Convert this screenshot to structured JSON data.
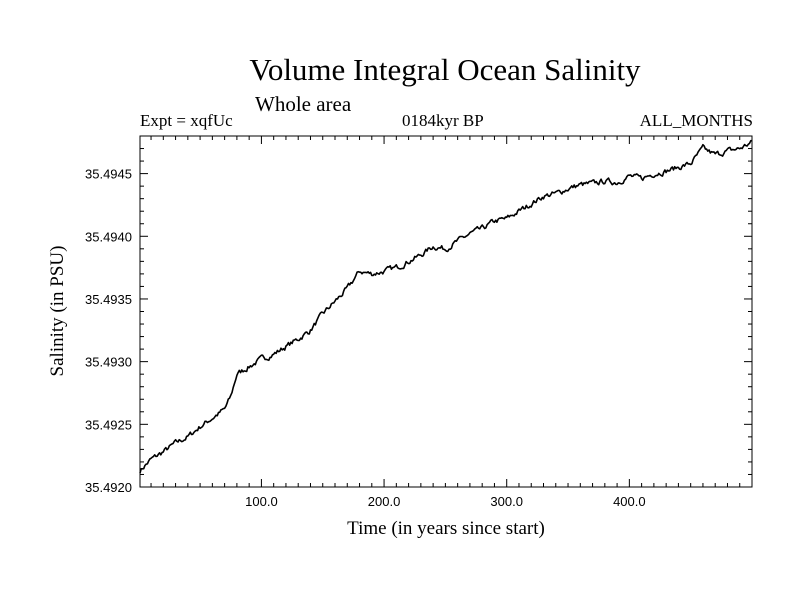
{
  "chart_data": {
    "type": "line",
    "title": "Volume Integral Ocean Salinity",
    "subtitle": "Whole area",
    "top_left": "Expt = xqfUc",
    "top_center": "0184kyr BP",
    "top_right": "ALL_MONTHS",
    "xlabel": "Time (in years since start)",
    "ylabel": "Salinity (in PSU)",
    "xlim": [
      1,
      500
    ],
    "ylim": [
      35.492,
      35.4948
    ],
    "xticks": [
      100,
      200,
      300,
      400
    ],
    "xtick_labels": [
      "100.0",
      "200.0",
      "300.0",
      "400.0"
    ],
    "yticks": [
      35.492,
      35.4925,
      35.493,
      35.4935,
      35.494,
      35.4945
    ],
    "ytick_labels": [
      "35.4920",
      "35.4925",
      "35.4930",
      "35.4935",
      "35.4940",
      "35.4945"
    ],
    "series": [
      {
        "name": "Salinity",
        "x": [
          1,
          10,
          20,
          30,
          40,
          50,
          60,
          70,
          75,
          80,
          90,
          100,
          110,
          120,
          130,
          140,
          150,
          160,
          170,
          180,
          190,
          200,
          210,
          220,
          230,
          240,
          250,
          260,
          270,
          280,
          290,
          300,
          310,
          320,
          330,
          340,
          350,
          360,
          370,
          380,
          390,
          400,
          410,
          420,
          430,
          440,
          450,
          460,
          470,
          480,
          490,
          500
        ],
        "y": [
          35.49213,
          35.49222,
          35.49228,
          35.49235,
          35.4924,
          35.49248,
          35.49255,
          35.49262,
          35.49272,
          35.4929,
          35.49296,
          35.49302,
          35.49306,
          35.49312,
          35.49318,
          35.49325,
          35.49338,
          35.49348,
          35.49358,
          35.49372,
          35.4937,
          35.49372,
          35.49375,
          35.4938,
          35.49385,
          35.49392,
          35.4939,
          35.49396,
          35.49402,
          35.49406,
          35.49412,
          35.49414,
          35.4942,
          35.49426,
          35.49432,
          35.49434,
          35.49438,
          35.49441,
          35.49442,
          35.49444,
          35.49443,
          35.49448,
          35.49446,
          35.4945,
          35.49452,
          35.49455,
          35.49458,
          35.4947,
          35.49465,
          35.49468,
          35.4947,
          35.49475
        ]
      }
    ]
  }
}
